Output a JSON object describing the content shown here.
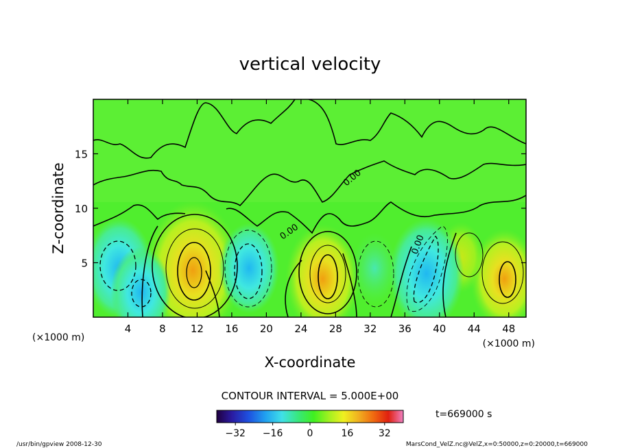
{
  "chart_data": {
    "type": "heatmap",
    "title": "vertical velocity",
    "xlabel": "X-coordinate",
    "ylabel": "Z-coordinate",
    "x_unit_left": "(×1000 m)",
    "x_unit_right": "(×1000 m)",
    "xlim": [
      0,
      50
    ],
    "ylim": [
      0,
      20
    ],
    "x_ticks": [
      4,
      8,
      12,
      16,
      20,
      24,
      28,
      32,
      36,
      40,
      44,
      48
    ],
    "y_ticks": [
      5,
      10,
      15
    ],
    "contour_interval_text": "CONTOUR INTERVAL = 5.000E+00",
    "contour_label": "0.00",
    "colorbar": {
      "range": [
        -40,
        40
      ],
      "ticks": [
        -32,
        -16,
        0,
        16,
        32
      ],
      "colors": [
        "#200040",
        "#2a1aa0",
        "#1e50e0",
        "#20a0f0",
        "#40e0e8",
        "#38e878",
        "#40f020",
        "#a0f020",
        "#f0f020",
        "#f0b020",
        "#f06a10",
        "#e02010",
        "#f080c0"
      ]
    },
    "time_label": "t=669000 s",
    "cells": [
      {
        "name": "updraft",
        "x": 11.5,
        "z": 4.3,
        "max": 20
      },
      {
        "name": "updraft",
        "x": 26.5,
        "z": 3.5,
        "max": 14
      },
      {
        "name": "updraft",
        "x": 47.5,
        "z": 3.5,
        "max": 12
      },
      {
        "name": "updraft",
        "x": 42.5,
        "z": 5.5,
        "max": 6
      },
      {
        "name": "downdraft",
        "x": 3,
        "z": 4.5,
        "min": -12
      },
      {
        "name": "downdraft",
        "x": 5.5,
        "z": 2.3,
        "min": -10
      },
      {
        "name": "downdraft",
        "x": 18,
        "z": 4.5,
        "min": -10
      },
      {
        "name": "downdraft",
        "x": 32.5,
        "z": 4.5,
        "min": -6
      },
      {
        "name": "downdraft",
        "x": 38.5,
        "z": 4.0,
        "min": -14
      }
    ]
  },
  "footer": {
    "left": "/usr/bin/gpview  2008-12-30",
    "right": "MarsCond_VelZ.nc@VelZ,x=0:50000,z=0:20000,t=669000"
  }
}
